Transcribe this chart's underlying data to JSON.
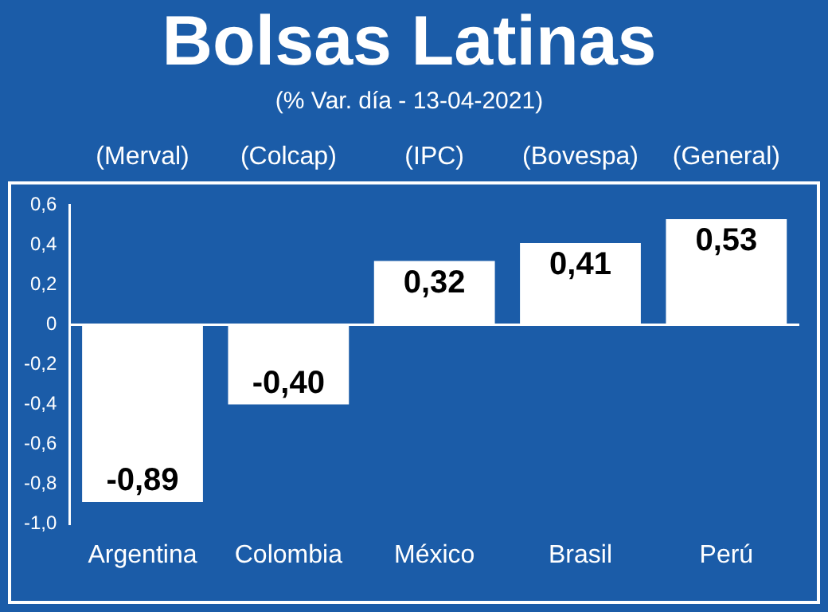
{
  "chart_data": {
    "type": "bar",
    "title": "Bolsas Latinas",
    "subtitle": "(% Var. día - 13-04-2021)",
    "categories": [
      "Argentina",
      "Colombia",
      "México",
      "Brasil",
      "Perú"
    ],
    "values": [
      -0.89,
      -0.4,
      0.32,
      0.41,
      0.53
    ],
    "value_labels": [
      "-0,89",
      "-0,40",
      "0,32",
      "0,41",
      "0,53"
    ],
    "color": "#ffffff",
    "annotations": [
      "(Merval)",
      "(Colcap)",
      "(IPC)",
      "(Bovespa)",
      "(General)"
    ],
    "ylim": [
      -1.0,
      0.6
    ],
    "yticks": [
      {
        "value": -1.0,
        "label": "-1,0"
      },
      {
        "value": -0.8,
        "label": "-0,8"
      },
      {
        "value": -0.6,
        "label": "-0,6"
      },
      {
        "value": -0.4,
        "label": "-0,4"
      },
      {
        "value": -0.2,
        "label": "-0,2"
      },
      {
        "value": 0,
        "label": "0"
      },
      {
        "value": 0.2,
        "label": "0,2"
      },
      {
        "value": 0.4,
        "label": "0,4"
      },
      {
        "value": 0.6,
        "label": "0,6"
      }
    ],
    "ref_lines": [
      {
        "axis": "y",
        "value": 0,
        "color": "#ffffff"
      }
    ],
    "grid": false,
    "legend": false
  }
}
